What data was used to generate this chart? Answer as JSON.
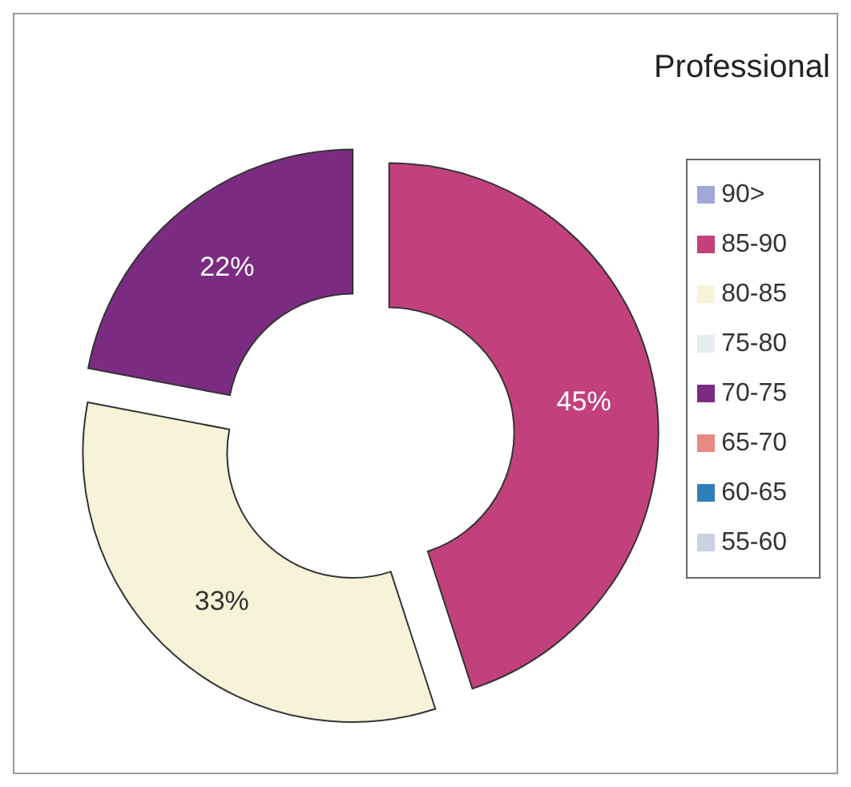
{
  "chart_data": {
    "type": "donut",
    "title": "Professional",
    "categories": [
      "90>",
      "85-90",
      "80-85",
      "75-80",
      "70-75",
      "65-70",
      "60-65",
      "55-60"
    ],
    "values": [
      0,
      45,
      33,
      0,
      22,
      0,
      0,
      0
    ],
    "colors": [
      "#9fa8d8",
      "#c2417c",
      "#f6f3d8",
      "#e4eeee",
      "#7b2c82",
      "#e88a84",
      "#2f7fba",
      "#c9d1e3"
    ],
    "value_labels": [
      null,
      "45%",
      "33%",
      null,
      "22%",
      null,
      null,
      null
    ],
    "legend": "right"
  }
}
